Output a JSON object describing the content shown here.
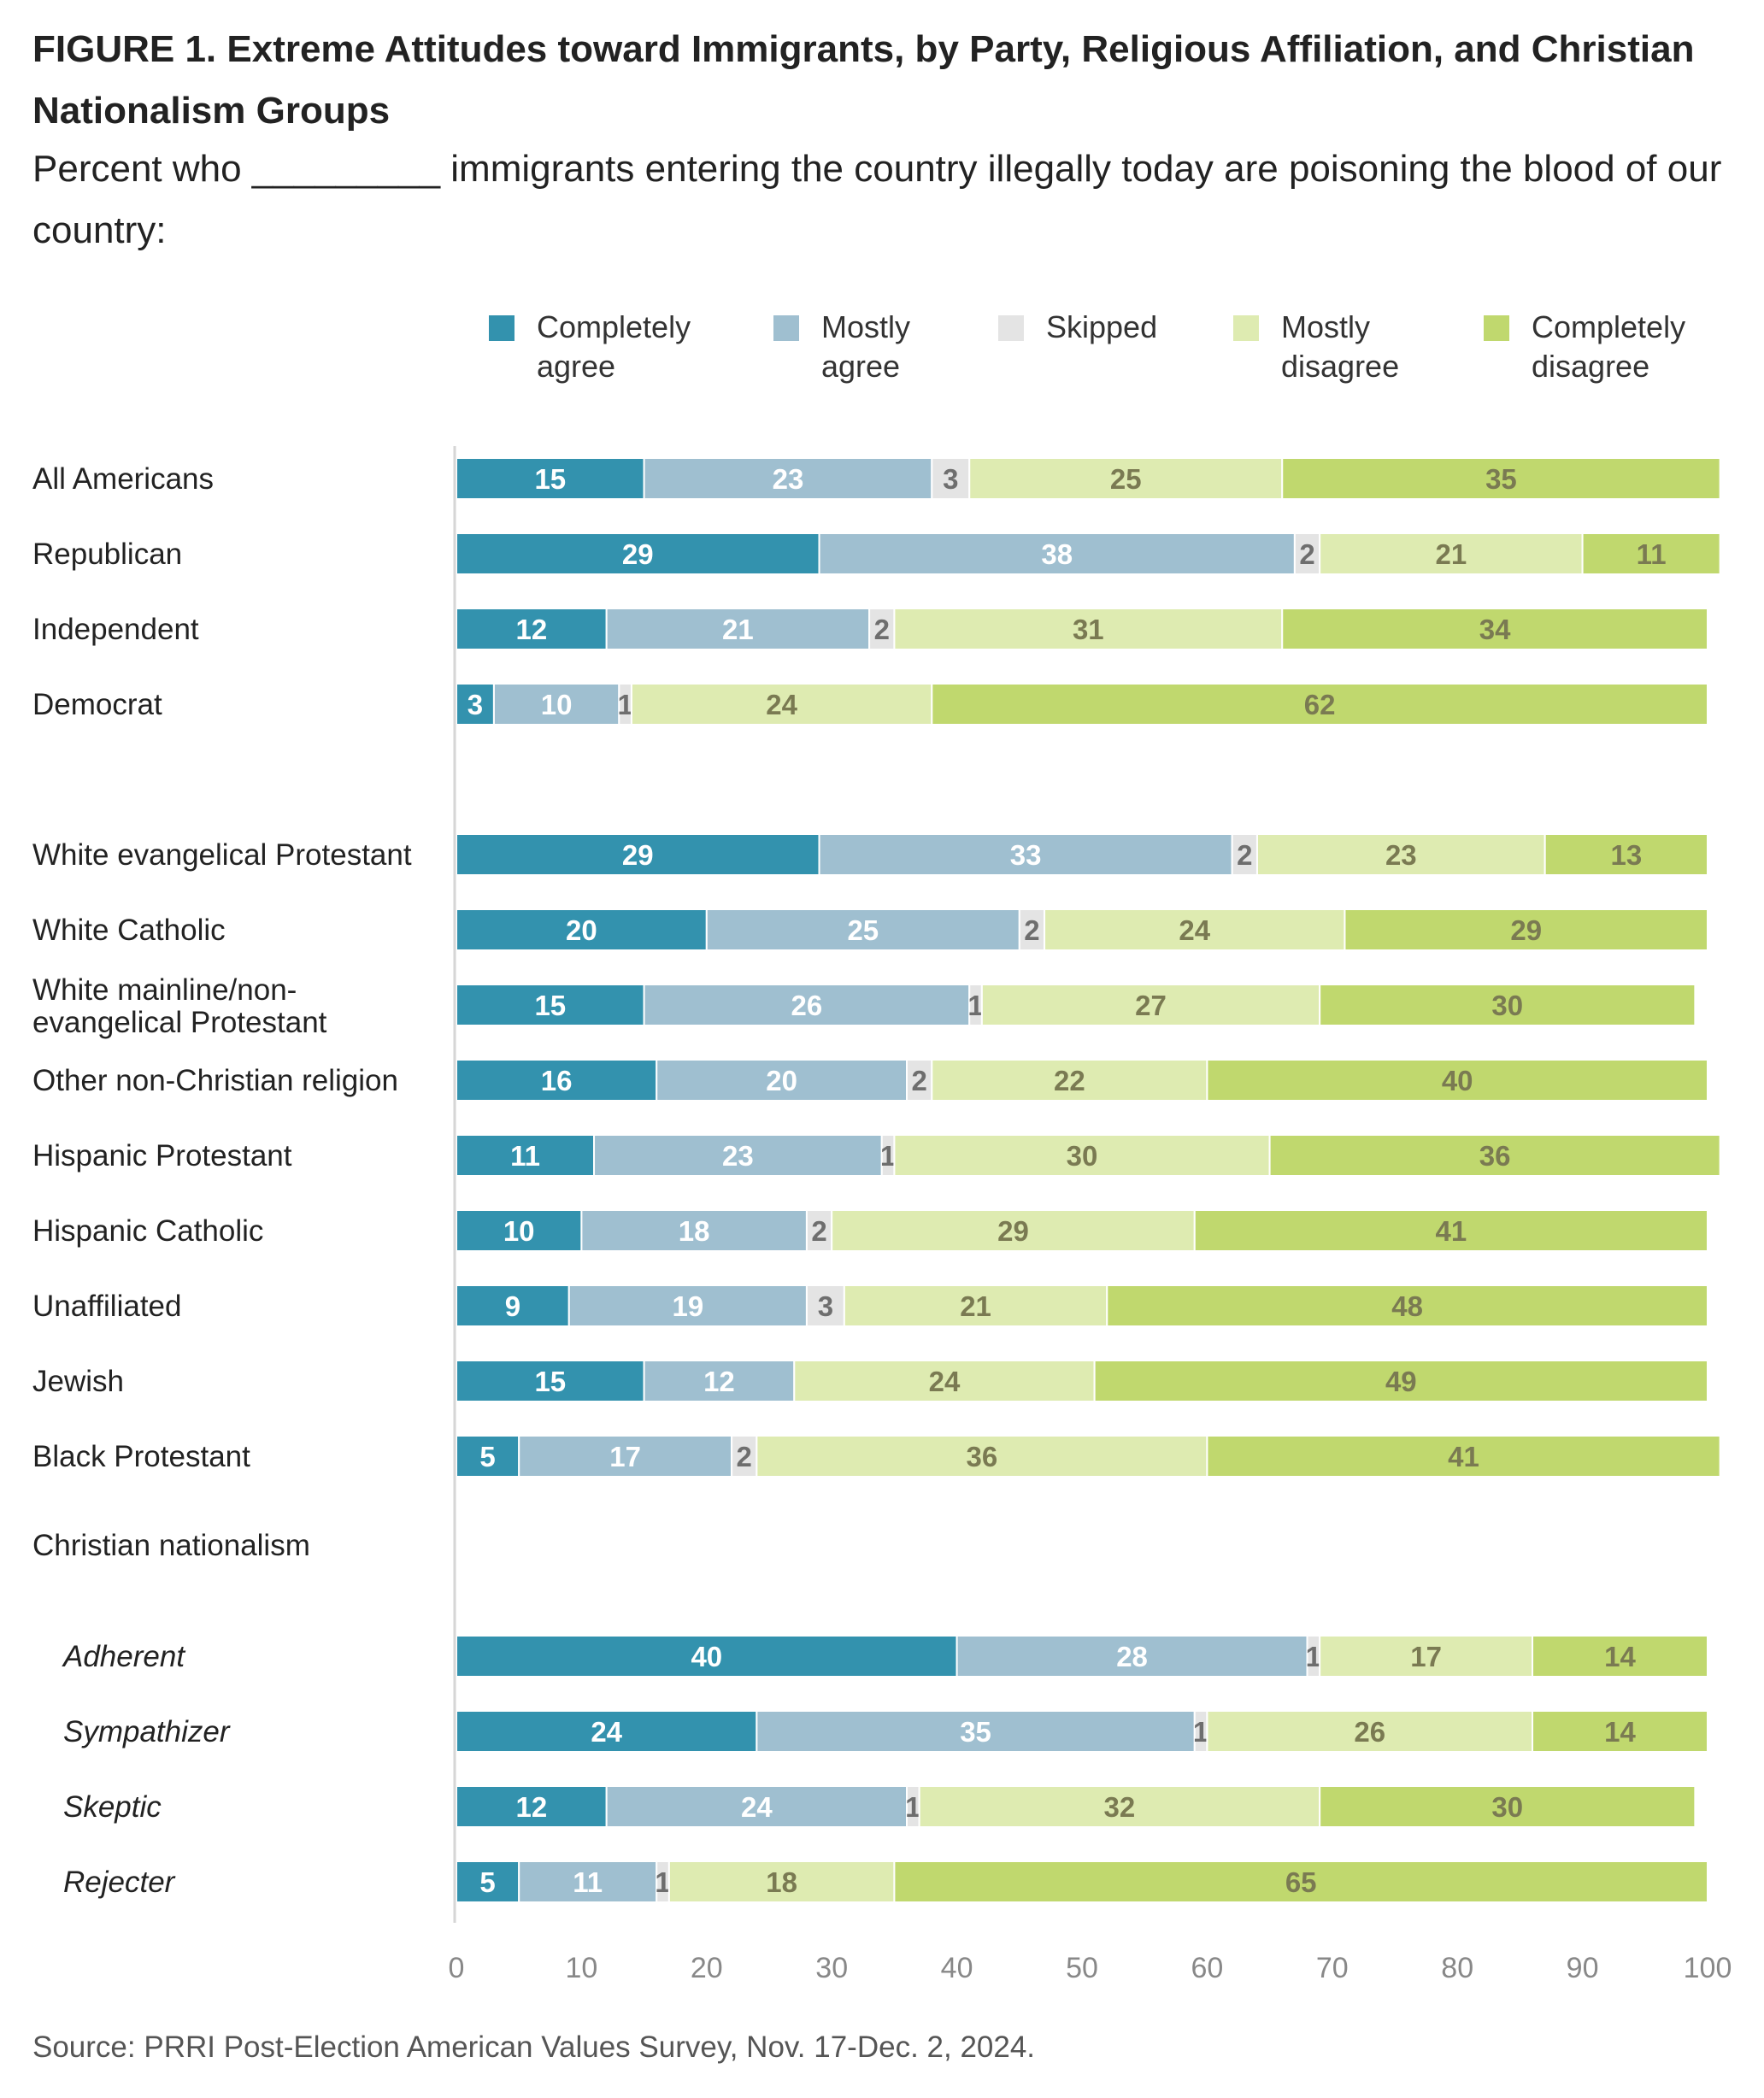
{
  "title": "FIGURE 1. Extreme Attitudes toward Immigrants, by Party, Religious Affiliation, and Christian Nationalism Groups",
  "subtitle": "Percent who _________ immigrants entering the country illegally today are poisoning the blood of our country:",
  "source": "Source: PRRI Post-Election American Values Survey, Nov. 17-Dec. 2, 2024.",
  "colors": {
    "completely_agree": "#3392ae",
    "mostly_agree": "#9fbfd0",
    "skipped": "#e4e4e4",
    "mostly_disagree": "#deebb1",
    "completely_disagree": "#c0d86e",
    "label_light": "#ffffff",
    "label_dark": "#7a7a52",
    "label_skip": "#6e6e6e"
  },
  "legend": [
    {
      "key": "completely_agree",
      "lines": [
        "Completely",
        "agree"
      ]
    },
    {
      "key": "mostly_agree",
      "lines": [
        "Mostly",
        "agree"
      ]
    },
    {
      "key": "skipped",
      "lines": [
        "Skipped"
      ]
    },
    {
      "key": "mostly_disagree",
      "lines": [
        "Mostly",
        "disagree"
      ]
    },
    {
      "key": "completely_disagree",
      "lines": [
        "Completely",
        "disagree"
      ]
    }
  ],
  "chart_data": {
    "type": "bar",
    "orientation": "horizontal-stacked",
    "xlim": [
      0,
      100
    ],
    "xticks": [
      0,
      10,
      20,
      30,
      40,
      50,
      60,
      70,
      80,
      90,
      100
    ],
    "grid": false,
    "legend_position": "top",
    "series": [
      {
        "name": "Completely agree",
        "key": "completely_agree"
      },
      {
        "name": "Mostly agree",
        "key": "mostly_agree"
      },
      {
        "name": "Skipped",
        "key": "skipped"
      },
      {
        "name": "Mostly disagree",
        "key": "mostly_disagree"
      },
      {
        "name": "Completely disagree",
        "key": "completely_disagree"
      }
    ],
    "groups": [
      {
        "header": "",
        "rows": [
          {
            "label": [
              "All Americans"
            ],
            "values": [
              15,
              23,
              3,
              25,
              35
            ]
          },
          {
            "label": [
              "Republican"
            ],
            "values": [
              29,
              38,
              2,
              21,
              11
            ]
          },
          {
            "label": [
              "Independent"
            ],
            "values": [
              12,
              21,
              2,
              31,
              34
            ]
          },
          {
            "label": [
              "Democrat"
            ],
            "values": [
              3,
              10,
              1,
              24,
              62
            ]
          }
        ]
      },
      {
        "header": "",
        "rows": [
          {
            "label": [
              "White evangelical Protestant"
            ],
            "values": [
              29,
              33,
              2,
              23,
              13
            ]
          },
          {
            "label": [
              "White Catholic"
            ],
            "values": [
              20,
              25,
              2,
              24,
              29
            ]
          },
          {
            "label": [
              "White mainline/non-",
              "evangelical Protestant"
            ],
            "values": [
              15,
              26,
              1,
              27,
              30
            ]
          },
          {
            "label": [
              "Other non-Christian religion"
            ],
            "values": [
              16,
              20,
              2,
              22,
              40
            ]
          },
          {
            "label": [
              "Hispanic Protestant"
            ],
            "values": [
              11,
              23,
              1,
              30,
              36
            ]
          },
          {
            "label": [
              "Hispanic Catholic"
            ],
            "values": [
              10,
              18,
              2,
              29,
              41
            ]
          },
          {
            "label": [
              "Unaffiliated"
            ],
            "values": [
              9,
              19,
              3,
              21,
              48
            ]
          },
          {
            "label": [
              "Jewish"
            ],
            "values": [
              15,
              12,
              0,
              24,
              49
            ]
          },
          {
            "label": [
              "Black Protestant"
            ],
            "values": [
              5,
              17,
              2,
              36,
              41
            ]
          }
        ]
      },
      {
        "header": "Christian nationalism",
        "italic": true,
        "rows": [
          {
            "label": [
              "Adherent"
            ],
            "values": [
              40,
              28,
              1,
              17,
              14
            ]
          },
          {
            "label": [
              "Sympathizer"
            ],
            "values": [
              24,
              35,
              1,
              26,
              14
            ]
          },
          {
            "label": [
              "Skeptic"
            ],
            "values": [
              12,
              24,
              1,
              32,
              30
            ]
          },
          {
            "label": [
              "Rejecter"
            ],
            "values": [
              5,
              11,
              1,
              18,
              65
            ]
          }
        ]
      }
    ]
  }
}
